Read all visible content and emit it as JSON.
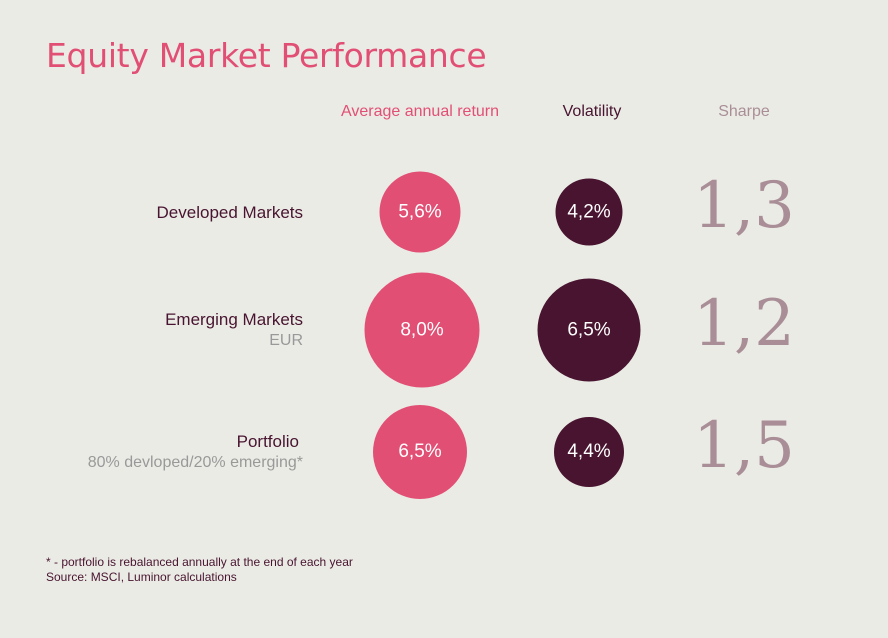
{
  "title": "Equity Market Performance",
  "columns": {
    "return": "Average annual return",
    "volatility": "Volatility",
    "sharpe": "Sharpe"
  },
  "rows": [
    {
      "name": "Developed Markets",
      "sub": "",
      "return": "5,6%",
      "volatility": "4,2%",
      "sharpe": "1,3"
    },
    {
      "name": "Emerging Markets",
      "sub": "EUR",
      "return": "8,0%",
      "volatility": "6,5%",
      "sharpe": "1,2"
    },
    {
      "name": "Portfolio",
      "sub": "80% devloped/20% emerging*",
      "return": "6,5%",
      "volatility": "4,4%",
      "sharpe": "1,5"
    }
  ],
  "footnote": {
    "line1": "* - portfolio is rebalanced annually at the end of each year",
    "line2": "Source: MSCI, Luminor calculations"
  },
  "colors": {
    "return": "#e24f74",
    "volatility": "#48142f",
    "sharpe": "#a98e97",
    "background": "#ebebe6"
  },
  "chart_data": {
    "type": "table",
    "title": "Equity Market Performance",
    "categories": [
      "Developed Markets",
      "Emerging Markets",
      "Portfolio"
    ],
    "series": [
      {
        "name": "Average annual return",
        "values": [
          5.6,
          8.0,
          6.5
        ]
      },
      {
        "name": "Volatility",
        "values": [
          4.2,
          6.5,
          4.4
        ]
      },
      {
        "name": "Sharpe",
        "values": [
          1.3,
          1.2,
          1.5
        ]
      }
    ]
  }
}
